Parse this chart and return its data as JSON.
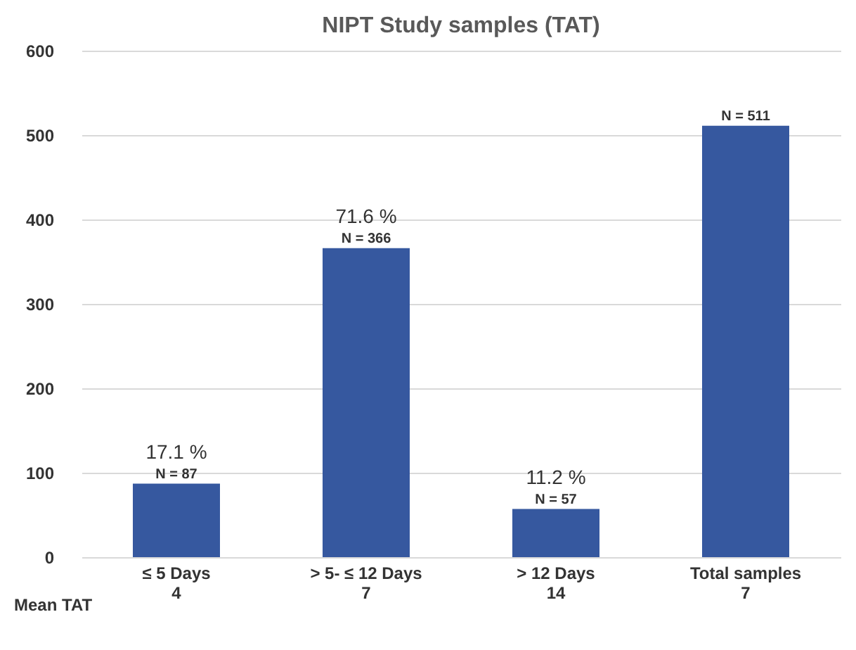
{
  "chart_data": {
    "type": "bar",
    "title": "NIPT Study samples (TAT)",
    "categories": [
      "≤ 5 Days\n4",
      "> 5- ≤ 12 Days\n7",
      "> 12 Days\n14",
      "Total samples\n7"
    ],
    "values": [
      87,
      366,
      57,
      511
    ],
    "color": "#36589f",
    "value_labels": [
      "N = 87",
      "N =  366",
      "N = 57",
      "N = 511"
    ],
    "annotations": [
      {
        "text": "17.1 %",
        "x": "≤ 5 Days\n4",
        "y": 87
      },
      {
        "text": "71.6 %",
        "x": "> 5- ≤ 12 Days\n7",
        "y": 366
      },
      {
        "text": "11.2 %",
        "x": "> 12 Days\n14",
        "y": 57
      },
      "Mean TAT"
    ],
    "ylim": [
      0,
      600
    ],
    "yticks": [
      0,
      100,
      200,
      300,
      400,
      500,
      600
    ],
    "grid": "y"
  }
}
